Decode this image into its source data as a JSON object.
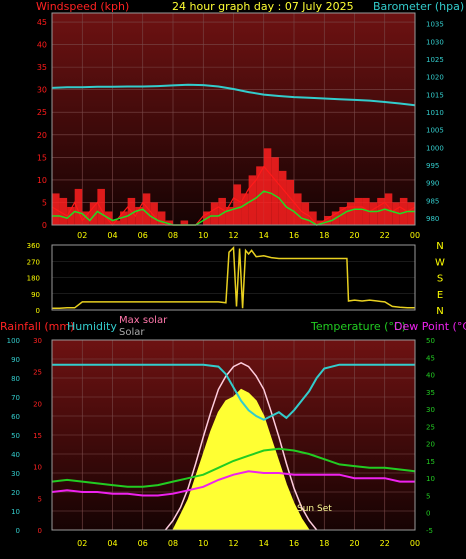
{
  "colors": {
    "wind": "#ff1a1a",
    "gust": "#ff2020",
    "wind_avg": "#22dd22",
    "baro": "#33cccc",
    "dir": "#e8d020",
    "rain": "#ff2222",
    "humidity": "#33cccc",
    "temperature": "#22cc22",
    "dewpoint": "#ee22ee",
    "solar": "#ffff33",
    "max_solar": "#ffccdd",
    "grid": "#7a4a4a",
    "panel_top": "#6e1212",
    "panel_bottom": "#160303",
    "axis_yellow": "#ffff00",
    "axis_cyan": "#33cccc"
  },
  "chart_data": [
    {
      "type": "line",
      "title": "24 hour graph day : 07 July 2025",
      "ylabel": "Windspeed (kph)",
      "y2label": "Barometer (hpa)",
      "ylim": [
        0,
        47
      ],
      "y_ticks": [
        "0",
        "5",
        "10",
        "15",
        "20",
        "25",
        "30",
        "35",
        "40",
        "45"
      ],
      "y2lim": [
        978,
        1038
      ],
      "y2_ticks": [
        "980",
        "985",
        "990",
        "995",
        "1000",
        "1005",
        "1010",
        "1015",
        "1020",
        "1025",
        "1030",
        "1035"
      ],
      "x_ticks": [
        "02",
        "04",
        "06",
        "08",
        "10",
        "12",
        "14",
        "16",
        "18",
        "20",
        "22",
        "00"
      ],
      "xlim": [
        0,
        24
      ],
      "grid": true,
      "series": [
        {
          "key": "gust",
          "x": [
            0,
            0.5,
            1,
            1.5,
            2,
            2.5,
            3,
            3.5,
            4,
            4.5,
            5,
            5.5,
            6,
            6.5,
            7,
            7.5,
            8,
            8.5,
            9,
            9.5,
            10,
            10.5,
            11,
            11.5,
            12,
            12.5,
            13,
            13.5,
            14,
            14.5,
            15,
            15.5,
            16,
            16.5,
            17,
            17.5,
            18,
            18.5,
            19,
            19.5,
            20,
            20.5,
            21,
            21.5,
            22,
            22.5,
            23,
            23.5,
            24
          ],
          "y": [
            7,
            6,
            4,
            8,
            3,
            5,
            8,
            3,
            1,
            3,
            6,
            4,
            7,
            5,
            3,
            1,
            0,
            1,
            0,
            0,
            3,
            5,
            6,
            4,
            9,
            7,
            11,
            13,
            17,
            15,
            12,
            10,
            7,
            5,
            3,
            1,
            2,
            3,
            4,
            5,
            6,
            6,
            5,
            6,
            7,
            5,
            6,
            5,
            6
          ]
        },
        {
          "key": "wind",
          "x": [
            0,
            0.5,
            1,
            1.5,
            2,
            2.5,
            3,
            3.5,
            4,
            4.5,
            5,
            5.5,
            6,
            6.5,
            7,
            7.5,
            8,
            8.5,
            9,
            9.5,
            10,
            10.5,
            11,
            11.5,
            12,
            12.5,
            13,
            13.5,
            14,
            14.5,
            15,
            15.5,
            16,
            16.5,
            17,
            17.5,
            18,
            18.5,
            19,
            19.5,
            20,
            20.5,
            21,
            21.5,
            22,
            22.5,
            23,
            23.5,
            24
          ],
          "y": [
            4,
            3,
            2,
            5,
            1,
            3,
            5,
            2,
            0,
            2,
            4,
            2,
            5,
            3,
            1,
            0,
            0,
            0,
            0,
            0,
            2,
            3,
            4,
            3,
            6,
            5,
            8,
            10,
            13,
            11,
            9,
            7,
            5,
            3,
            2,
            0,
            1,
            2,
            3,
            4,
            4,
            4,
            3,
            4,
            5,
            3,
            4,
            3,
            4
          ]
        },
        {
          "key": "wind_avg",
          "x": [
            0,
            0.5,
            1,
            1.5,
            2,
            2.5,
            3,
            3.5,
            4,
            4.5,
            5,
            5.5,
            6,
            6.5,
            7,
            7.5,
            8,
            8.5,
            9,
            9.5,
            10,
            10.5,
            11,
            11.5,
            12,
            12.5,
            13,
            13.5,
            14,
            14.5,
            15,
            15.5,
            16,
            16.5,
            17,
            17.5,
            18,
            18.5,
            19,
            19.5,
            20,
            20.5,
            21,
            21.5,
            22,
            22.5,
            23,
            23.5,
            24
          ],
          "y": [
            2,
            2,
            1.5,
            3,
            2.5,
            1,
            3,
            2,
            1,
            1.5,
            2,
            3,
            3.5,
            2,
            1,
            0.5,
            0,
            0,
            0,
            0,
            1,
            2,
            2,
            3,
            3.5,
            4,
            5,
            6,
            7.5,
            7,
            6,
            4,
            3,
            1.5,
            1,
            0,
            0.5,
            1,
            2,
            3,
            3.5,
            3.5,
            3,
            3,
            3.5,
            3,
            2.5,
            3,
            3
          ]
        },
        {
          "key": "baro",
          "axis": "y2",
          "x": [
            0,
            1,
            2,
            3,
            4,
            5,
            6,
            7,
            8,
            9,
            10,
            11,
            12,
            13,
            14,
            15,
            16,
            17,
            18,
            19,
            20,
            21,
            22,
            23,
            24
          ],
          "y": [
            1016.8,
            1017,
            1017,
            1017.1,
            1017.1,
            1017.2,
            1017.2,
            1017.3,
            1017.5,
            1017.7,
            1017.6,
            1017.2,
            1016.5,
            1015.6,
            1014.9,
            1014.5,
            1014.2,
            1014.0,
            1013.8,
            1013.6,
            1013.4,
            1013.2,
            1012.8,
            1012.4,
            1011.9
          ]
        }
      ]
    },
    {
      "type": "line",
      "ylabel": "",
      "ylim": [
        0,
        360
      ],
      "y_ticks": [
        "0",
        "90",
        "180",
        "270",
        "360"
      ],
      "y2_ticks": [
        "N",
        "W",
        "S",
        "E",
        "N"
      ],
      "xlim": [
        0,
        24
      ],
      "series": [
        {
          "key": "direction",
          "x": [
            0,
            0.5,
            1,
            1.5,
            2,
            2.5,
            3,
            3.5,
            4,
            4.5,
            5,
            5.5,
            6,
            6.5,
            7,
            7.5,
            8,
            8.5,
            9,
            9.5,
            10,
            10.5,
            11,
            11.5,
            11.7,
            12,
            12.2,
            12.4,
            12.6,
            12.8,
            13,
            13.2,
            13.5,
            14,
            14.5,
            15,
            15.5,
            16,
            16.5,
            17,
            17.5,
            18,
            18.5,
            19,
            19.5,
            19.6,
            20,
            20.5,
            21,
            21.5,
            22,
            22.5,
            23,
            23.5,
            24
          ],
          "y": [
            10,
            10,
            12,
            12,
            45,
            45,
            45,
            45,
            45,
            45,
            45,
            45,
            45,
            45,
            45,
            45,
            45,
            45,
            45,
            45,
            45,
            45,
            45,
            40,
            320,
            345,
            20,
            340,
            10,
            330,
            310,
            330,
            295,
            300,
            290,
            285,
            285,
            285,
            285,
            285,
            285,
            285,
            285,
            285,
            285,
            50,
            55,
            50,
            55,
            50,
            45,
            20,
            15,
            12,
            12
          ]
        }
      ]
    },
    {
      "type": "line",
      "ylabel": "Rainfall (mm)",
      "ylabel2": "Humidity",
      "ylabel3": "Max solar",
      "ylabel4": "Solar",
      "y_ticks_left": [
        "0",
        "10",
        "20",
        "30",
        "40",
        "50",
        "60",
        "70",
        "80",
        "90",
        "100"
      ],
      "humidity_lim": [
        0,
        100
      ],
      "y_ticks_rain": [
        "0",
        "5",
        "10",
        "15",
        "20",
        "25",
        "30"
      ],
      "rain_lim": [
        0,
        30
      ],
      "y2label": "Temperature (°C)",
      "y3label": "Dew Point (°C)",
      "y_ticks_right": [
        "-5",
        "0",
        "5",
        "10",
        "15",
        "20",
        "25",
        "30",
        "35",
        "40",
        "45",
        "50"
      ],
      "temp_lim": [
        -5,
        50
      ],
      "xlim": [
        0,
        24
      ],
      "x_ticks": [
        "02",
        "04",
        "06",
        "08",
        "10",
        "12",
        "14",
        "16",
        "18",
        "20",
        "22",
        "00"
      ],
      "annotations": [
        "Sun Set"
      ],
      "series": [
        {
          "key": "humidity",
          "x": [
            0,
            1,
            2,
            3,
            4,
            5,
            6,
            7,
            8,
            9,
            10,
            11,
            11.5,
            12,
            12.5,
            13,
            13.5,
            14,
            14.5,
            15,
            15.5,
            16,
            16.5,
            17,
            17.5,
            18,
            19,
            20,
            21,
            22,
            23,
            24
          ],
          "y": [
            87,
            87,
            87,
            87,
            87,
            87,
            87,
            87,
            87,
            87,
            87,
            86,
            82,
            75,
            68,
            63,
            60,
            58,
            60,
            62,
            59,
            63,
            68,
            73,
            80,
            85,
            87,
            87,
            87,
            87,
            87,
            87
          ]
        },
        {
          "key": "temperature",
          "x": [
            0,
            1,
            2,
            3,
            4,
            5,
            6,
            7,
            8,
            9,
            10,
            11,
            12,
            13,
            14,
            15,
            16,
            17,
            18,
            19,
            20,
            21,
            22,
            23,
            24
          ],
          "y": [
            9,
            9.5,
            9,
            8.5,
            8,
            7.5,
            7.5,
            8,
            9,
            10,
            11,
            13,
            15,
            16.5,
            18,
            18.5,
            18,
            17,
            15.5,
            14,
            13.5,
            13,
            13,
            12.5,
            12
          ]
        },
        {
          "key": "dewpoint",
          "x": [
            0,
            1,
            2,
            3,
            4,
            5,
            6,
            7,
            8,
            9,
            10,
            11,
            12,
            13,
            14,
            15,
            16,
            17,
            18,
            19,
            20,
            21,
            22,
            23,
            24
          ],
          "y": [
            6,
            6.5,
            6,
            6,
            5.5,
            5.5,
            5,
            5,
            5.5,
            6.5,
            7.5,
            9.5,
            11,
            12,
            11.5,
            11.5,
            11,
            11,
            11,
            11,
            10,
            10,
            10,
            9,
            9
          ]
        },
        {
          "key": "max_solar",
          "x": [
            7.5,
            8,
            8.5,
            9,
            9.5,
            10,
            10.5,
            11,
            11.5,
            12,
            12.5,
            13,
            13.5,
            14,
            14.5,
            15,
            15.5,
            16,
            16.5,
            17,
            17.5
          ],
          "y": [
            0,
            5,
            12,
            22,
            35,
            49,
            62,
            74,
            81,
            86,
            88,
            86,
            81,
            74,
            62,
            49,
            35,
            22,
            12,
            5,
            0
          ]
        },
        {
          "key": "solar",
          "x": [
            8,
            8.5,
            9,
            9.5,
            10,
            10.5,
            11,
            11.5,
            12,
            12.5,
            13,
            13.5,
            14,
            14.5,
            15,
            15.5,
            16,
            16.5,
            17
          ],
          "y": [
            0,
            8,
            16,
            28,
            40,
            52,
            62,
            68,
            70,
            74,
            72,
            68,
            60,
            48,
            36,
            24,
            14,
            6,
            0
          ]
        }
      ]
    }
  ]
}
